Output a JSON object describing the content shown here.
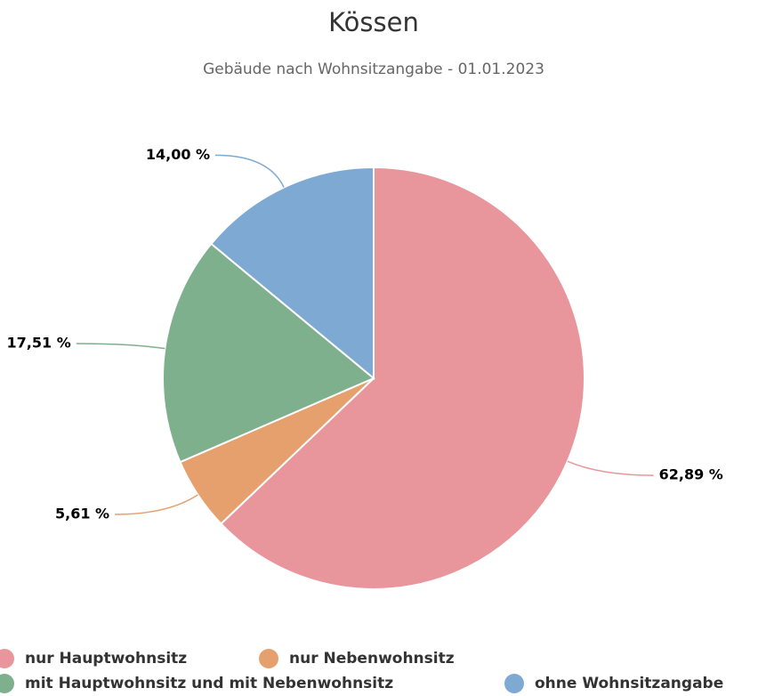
{
  "chart_data": {
    "type": "pie",
    "title": "Kössen",
    "subtitle": "Gebäude nach Wohnsitzangabe - 01.01.2023",
    "categories": [
      "nur Hauptwohnsitz",
      "nur Nebenwohnsitz",
      "mit Hauptwohnsitz und mit Nebenwohnsitz",
      "ohne Wohnsitzangabe"
    ],
    "values": [
      62.89,
      5.61,
      17.51,
      14.0
    ],
    "value_labels": [
      "62,89 %",
      "5,61 %",
      "17,51 %",
      "14,00 %"
    ],
    "colors": [
      "#e8969b",
      "#e6a06e",
      "#7eb08e",
      "#7ea9d3"
    ],
    "legend": "bottom"
  }
}
